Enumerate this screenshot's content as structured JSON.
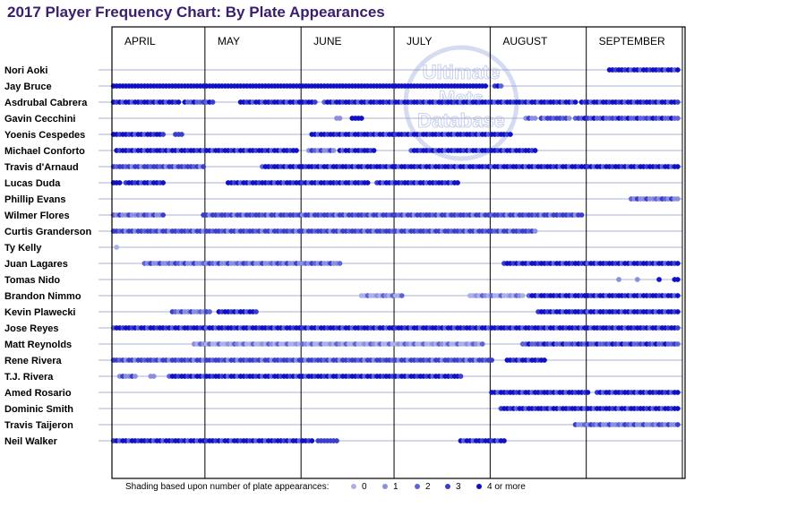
{
  "chart_data": {
    "type": "scatter",
    "title": "2017 Player Frequency Chart: By Plate Appearances",
    "watermark": [
      "Ultimate",
      "Mets",
      "Database"
    ],
    "months": [
      "APRIL",
      "MAY",
      "JUNE",
      "JULY",
      "AUGUST",
      "SEPTEMBER"
    ],
    "month_days": [
      30,
      31,
      30,
      31,
      31,
      31
    ],
    "legend": {
      "caption": "Shading based upon number of plate appearances:",
      "levels": [
        {
          "label": "0",
          "color": "#aab0e8"
        },
        {
          "label": "1",
          "color": "#8a8fe0"
        },
        {
          "label": "2",
          "color": "#5f63d8"
        },
        {
          "label": "3",
          "color": "#3a3ecf"
        },
        {
          "label": "4 or more",
          "color": "#1010c8"
        }
      ]
    },
    "players": [
      {
        "name": "Nori Aoki",
        "segments": [
          [
            161,
            183,
            4,
            5
          ]
        ]
      },
      {
        "name": "Jay Bruce",
        "segments": [
          [
            1,
            121,
            4,
            0
          ],
          [
            124,
            126,
            4,
            3
          ]
        ]
      },
      {
        "name": "Asdrubal Cabrera",
        "segments": [
          [
            1,
            22,
            4,
            7
          ],
          [
            24,
            33,
            2,
            17
          ],
          [
            42,
            66,
            4,
            11
          ],
          [
            69,
            150,
            4,
            9
          ],
          [
            152,
            183,
            4,
            13
          ]
        ]
      },
      {
        "name": "Gavin Cecchini",
        "segments": [
          [
            73,
            74,
            1,
            0
          ],
          [
            78,
            81,
            4,
            0
          ],
          [
            134,
            137,
            1,
            1
          ],
          [
            139,
            148,
            3,
            7
          ],
          [
            150,
            183,
            2,
            19
          ]
        ]
      },
      {
        "name": "Yoenis Cespedes",
        "segments": [
          [
            1,
            17,
            4,
            3
          ],
          [
            21,
            23,
            3,
            0
          ],
          [
            65,
            129,
            4,
            23
          ]
        ]
      },
      {
        "name": "Michael Conforto",
        "segments": [
          [
            2,
            60,
            4,
            5
          ],
          [
            64,
            72,
            1,
            1
          ],
          [
            74,
            85,
            4,
            3
          ],
          [
            97,
            137,
            4,
            9
          ]
        ]
      },
      {
        "name": "Travis d'Arnaud",
        "segments": [
          [
            1,
            30,
            3,
            31
          ],
          [
            49,
            183,
            4,
            41
          ]
        ]
      },
      {
        "name": "Lucas Duda",
        "segments": [
          [
            1,
            3,
            4,
            0
          ],
          [
            5,
            17,
            4,
            5
          ],
          [
            38,
            83,
            4,
            7
          ],
          [
            86,
            112,
            4,
            3
          ]
        ]
      },
      {
        "name": "Phillip Evans",
        "segments": [
          [
            168,
            183,
            1,
            23
          ]
        ]
      },
      {
        "name": "Wilmer Flores",
        "segments": [
          [
            1,
            17,
            1,
            29
          ],
          [
            30,
            152,
            3,
            37
          ]
        ]
      },
      {
        "name": "Curtis Granderson",
        "segments": [
          [
            1,
            137,
            3,
            43
          ]
        ]
      },
      {
        "name": "Ty Kelly",
        "segments": [
          [
            2,
            2,
            0,
            0
          ]
        ]
      },
      {
        "name": "Juan Lagares",
        "segments": [
          [
            11,
            74,
            1,
            37
          ],
          [
            127,
            183,
            4,
            13
          ]
        ]
      },
      {
        "name": "Tomas Nido",
        "segments": [
          [
            164,
            164,
            1,
            0
          ],
          [
            170,
            170,
            1,
            0
          ],
          [
            177,
            177,
            4,
            0
          ],
          [
            182,
            183,
            4,
            0
          ]
        ]
      },
      {
        "name": "Brandon Nimmo",
        "segments": [
          [
            81,
            94,
            0,
            17
          ],
          [
            116,
            133,
            0,
            19
          ],
          [
            135,
            183,
            4,
            11
          ]
        ]
      },
      {
        "name": "Kevin Plawecki",
        "segments": [
          [
            20,
            32,
            1,
            23
          ],
          [
            35,
            47,
            4,
            3
          ],
          [
            138,
            183,
            4,
            19
          ]
        ]
      },
      {
        "name": "Jose Reyes",
        "segments": [
          [
            1,
            183,
            4,
            47
          ]
        ]
      },
      {
        "name": "Matt Reynolds",
        "segments": [
          [
            27,
            120,
            0,
            53
          ],
          [
            133,
            183,
            2,
            29
          ]
        ]
      },
      {
        "name": "Rene Rivera",
        "segments": [
          [
            1,
            123,
            3,
            59
          ],
          [
            128,
            140,
            4,
            3
          ]
        ]
      },
      {
        "name": "T.J. Rivera",
        "segments": [
          [
            3,
            8,
            1,
            3
          ],
          [
            13,
            14,
            1,
            0
          ],
          [
            19,
            113,
            4,
            61
          ]
        ]
      },
      {
        "name": "Amed Rosario",
        "segments": [
          [
            123,
            154,
            4,
            5
          ],
          [
            157,
            183,
            4,
            19
          ]
        ]
      },
      {
        "name": "Dominic Smith",
        "segments": [
          [
            126,
            183,
            4,
            11
          ]
        ]
      },
      {
        "name": "Travis Taijeron",
        "segments": [
          [
            150,
            183,
            1,
            31
          ]
        ]
      },
      {
        "name": "Neil Walker",
        "segments": [
          [
            1,
            65,
            4,
            7
          ],
          [
            67,
            73,
            3,
            0
          ],
          [
            113,
            127,
            4,
            5
          ]
        ]
      }
    ]
  }
}
